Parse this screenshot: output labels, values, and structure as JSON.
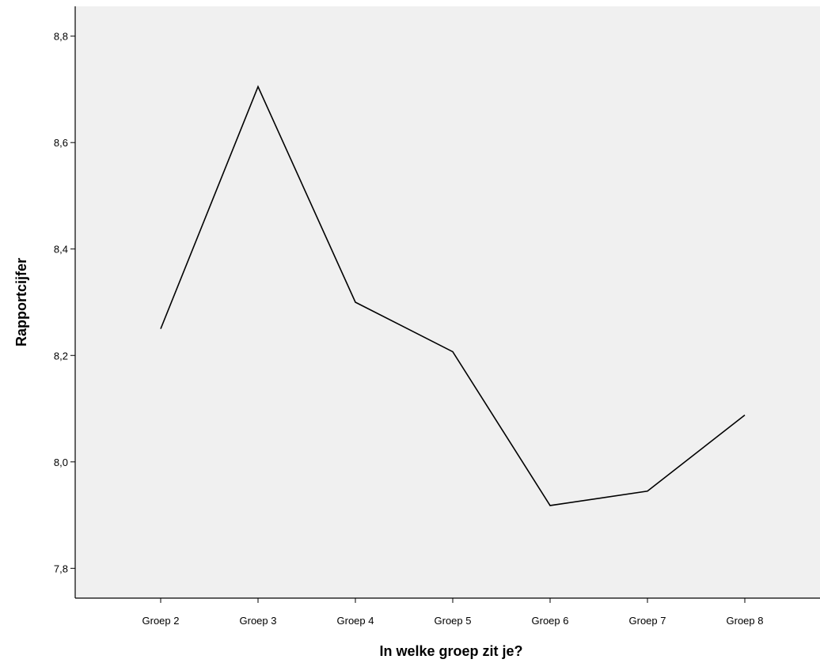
{
  "chart_data": {
    "type": "line",
    "title": "",
    "xlabel": "In welke groep zit je?",
    "ylabel": "Rapportcijfer",
    "categories": [
      "Groep 2",
      "Groep 3",
      "Groep 4",
      "Groep 5",
      "Groep 6",
      "Groep 7",
      "Groep 8"
    ],
    "series": [
      {
        "values": [
          8.25,
          8.705,
          8.3,
          8.207,
          7.918,
          7.945,
          8.088
        ]
      }
    ],
    "ylim": [
      7.744,
      8.856
    ],
    "yticks": [
      7.8,
      8.0,
      8.2,
      8.4,
      8.6,
      8.8
    ],
    "ytick_labels": [
      "7,8",
      "8,0",
      "8,2",
      "8,4",
      "8,6",
      "8,8"
    ],
    "grid": false,
    "legend": "none",
    "colors": {
      "plot_background": "#f0f0f0",
      "line": "#000000",
      "axis": "#000000"
    }
  }
}
